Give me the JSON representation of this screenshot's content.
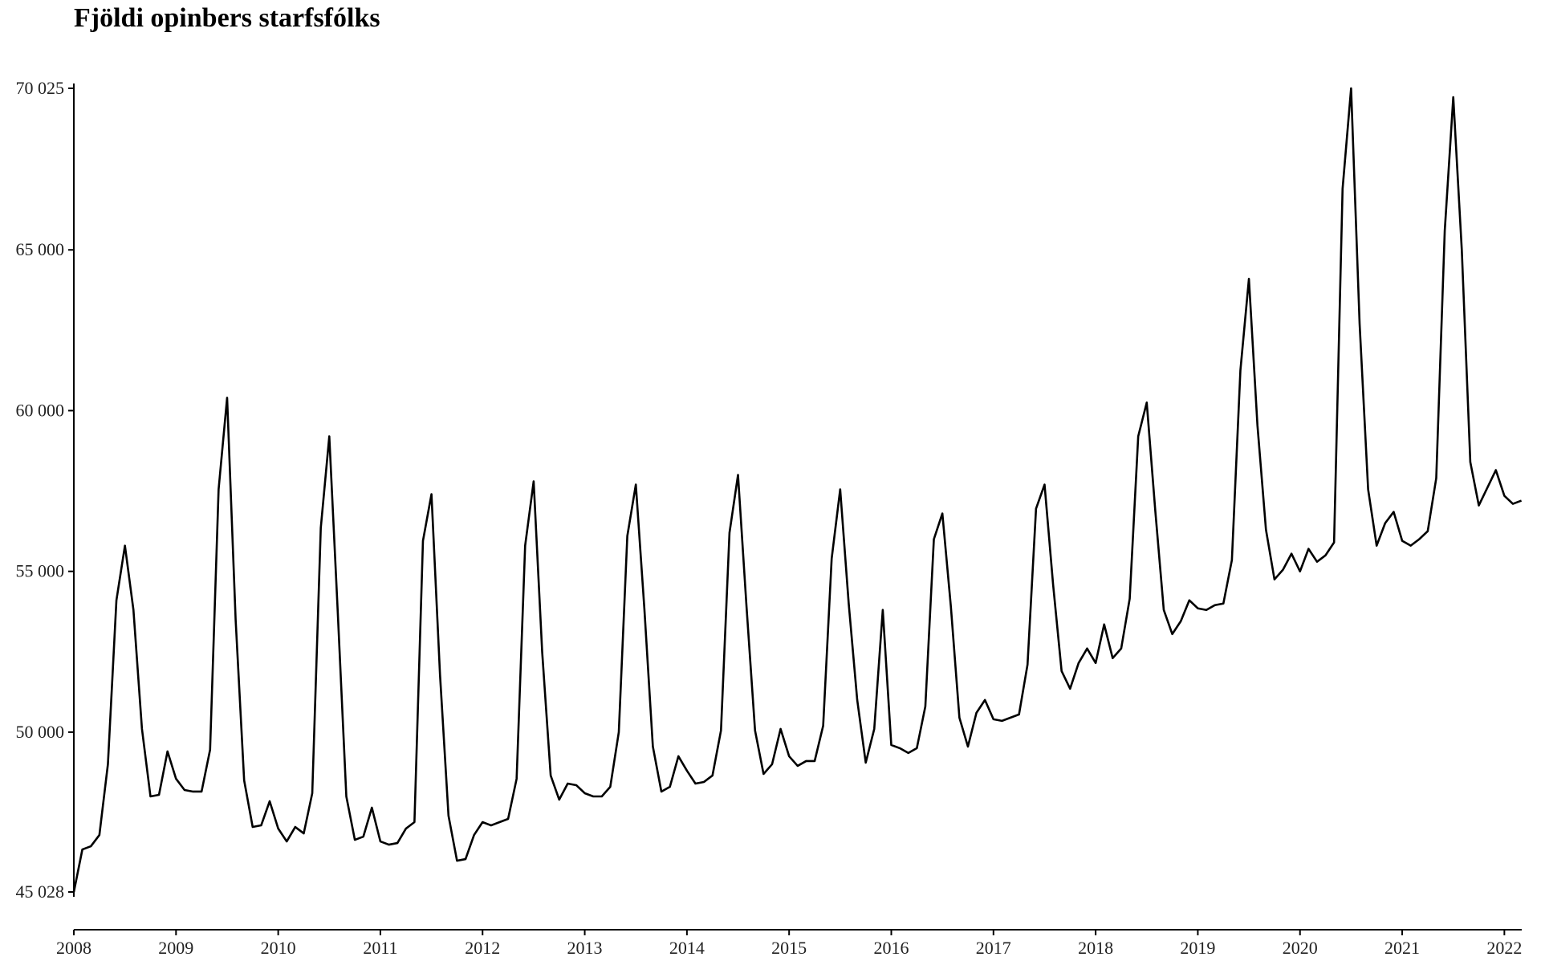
{
  "chart_data": {
    "type": "line",
    "title": "Fjöldi opinbers starfsfólks",
    "xlabel": "",
    "ylabel": "",
    "grid": false,
    "xlim": [
      2008.0,
      2022.17
    ],
    "ylim": [
      45028,
      70025
    ],
    "yticks": [
      45028,
      50000,
      55000,
      60000,
      65000,
      70025
    ],
    "ytick_labels": [
      "45 028",
      "50 000",
      "55 000",
      "60 000",
      "65 000",
      "70 025"
    ],
    "xticks": [
      2008,
      2009,
      2010,
      2011,
      2012,
      2013,
      2014,
      2015,
      2016,
      2017,
      2018,
      2019,
      2020,
      2021,
      2022
    ],
    "xtick_labels": [
      "2008",
      "2009",
      "2010",
      "2011",
      "2012",
      "2013",
      "2014",
      "2015",
      "2016",
      "2017",
      "2018",
      "2019",
      "2020",
      "2021",
      "2022"
    ],
    "line_color": "#000000",
    "start": "2008-01",
    "values": [
      45028,
      46350,
      46450,
      46800,
      49000,
      54100,
      55800,
      53800,
      50100,
      48000,
      48050,
      49400,
      48550,
      48200,
      48150,
      48150,
      49450,
      57550,
      60400,
      53500,
      48500,
      47050,
      47100,
      47850,
      47000,
      46600,
      47050,
      46850,
      48100,
      56350,
      59200,
      53700,
      48000,
      46650,
      46750,
      47650,
      46600,
      46500,
      46550,
      47000,
      47200,
      55950,
      57400,
      51800,
      47400,
      46000,
      46050,
      46800,
      47200,
      47100,
      47200,
      47300,
      48550,
      55800,
      57800,
      52500,
      48650,
      47900,
      48400,
      48350,
      48100,
      48000,
      48000,
      48300,
      50000,
      56100,
      57700,
      53850,
      49550,
      48150,
      48300,
      49250,
      48800,
      48400,
      48450,
      48650,
      50050,
      56200,
      58000,
      53900,
      50050,
      48700,
      49000,
      50100,
      49250,
      48950,
      49100,
      49100,
      50200,
      55400,
      57550,
      54000,
      51000,
      49050,
      50100,
      53800,
      49600,
      49500,
      49350,
      49500,
      50800,
      56000,
      56800,
      53900,
      50450,
      49550,
      50600,
      51000,
      50400,
      50350,
      50450,
      50550,
      52100,
      56950,
      57700,
      54600,
      51900,
      51350,
      52150,
      52600,
      52150,
      53350,
      52300,
      52600,
      54150,
      59200,
      60250,
      56900,
      53800,
      53050,
      53450,
      54100,
      53850,
      53800,
      53950,
      54000,
      55350,
      61250,
      64100,
      59550,
      56300,
      54750,
      55050,
      55550,
      55000,
      55700,
      55300,
      55500,
      55900,
      66900,
      70025,
      62700,
      57550,
      55800,
      56500,
      56850,
      55950,
      55800,
      56000,
      56250,
      57900,
      65600,
      69750,
      65000,
      58400,
      57050,
      57600,
      58150,
      57350,
      57100,
      57200
    ]
  }
}
